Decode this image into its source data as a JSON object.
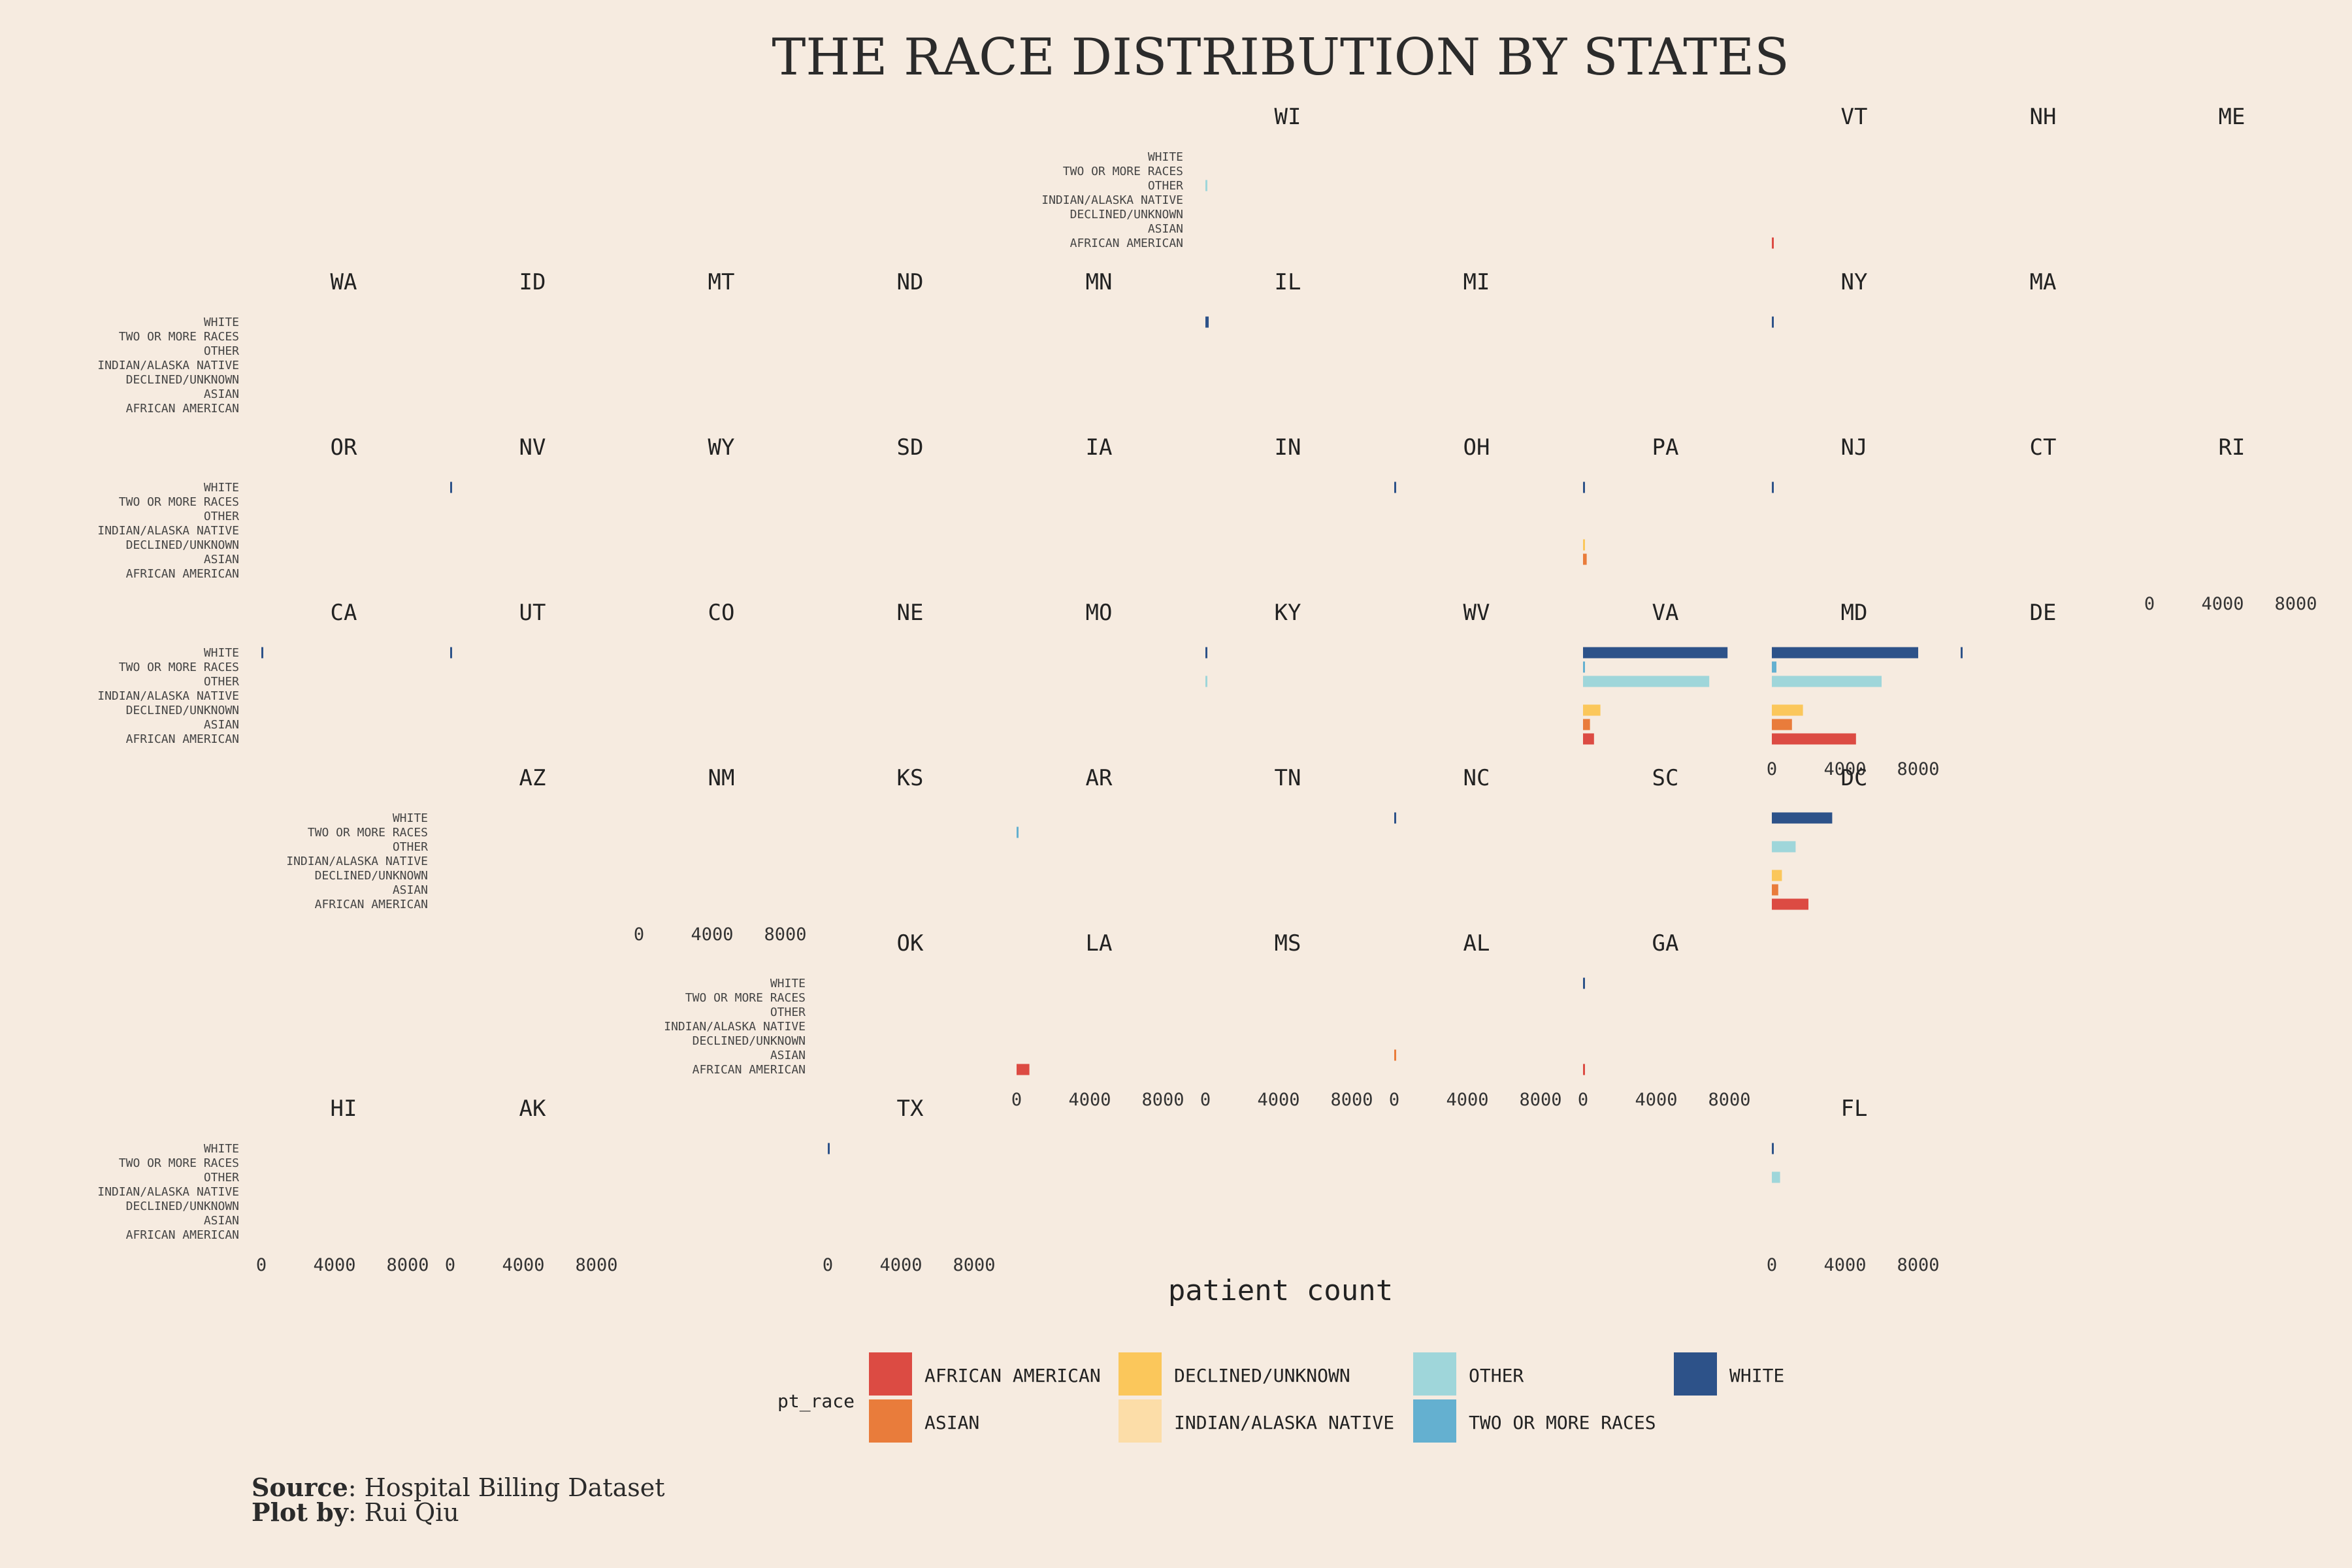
{
  "chart_data": {
    "type": "bar",
    "title": "THE RACE DISTRIBUTION BY STATES",
    "xlabel": "patient count",
    "xlim": [
      0,
      9000
    ],
    "xticks": [
      0,
      4000,
      8000
    ],
    "categories": [
      "WHITE",
      "TWO OR MORE RACES",
      "OTHER",
      "INDIAN/ALASKA NATIVE",
      "DECLINED/UNKNOWN",
      "ASIAN",
      "AFRICAN AMERICAN"
    ],
    "legend_title": "pt_race",
    "legend_position": "bottom",
    "series_colors": {
      "AFRICAN AMERICAN": "#dc4b43",
      "ASIAN": "#e97c3b",
      "DECLINED/UNKNOWN": "#fbc75b",
      "INDIAN/ALASKA NATIVE": "#fcdda8",
      "OTHER": "#9fd6da",
      "TWO OR MORE RACES": "#64b0d0",
      "WHITE": "#2d5289"
    },
    "legend_order": [
      "AFRICAN AMERICAN",
      "ASIAN",
      "DECLINED/UNKNOWN",
      "INDIAN/ALASKA NATIVE",
      "OTHER",
      "TWO OR MORE RACES",
      "WHITE"
    ],
    "panels": [
      {
        "state": "WI",
        "row": 0,
        "col": 6,
        "ylabels": true,
        "xaxis": false,
        "values": {
          "OTHER": 50
        }
      },
      {
        "state": "VT",
        "row": 0,
        "col": 9,
        "ylabels": false,
        "xaxis": false,
        "values": {
          "AFRICAN AMERICAN": 30
        }
      },
      {
        "state": "NH",
        "row": 0,
        "col": 10,
        "ylabels": false,
        "xaxis": false,
        "values": {}
      },
      {
        "state": "ME",
        "row": 0,
        "col": 11,
        "ylabels": false,
        "xaxis": false,
        "values": {}
      },
      {
        "state": "WA",
        "row": 1,
        "col": 1,
        "ylabels": true,
        "xaxis": false,
        "values": {}
      },
      {
        "state": "ID",
        "row": 1,
        "col": 2,
        "ylabels": false,
        "xaxis": false,
        "values": {}
      },
      {
        "state": "MT",
        "row": 1,
        "col": 3,
        "ylabels": false,
        "xaxis": false,
        "values": {}
      },
      {
        "state": "ND",
        "row": 1,
        "col": 4,
        "ylabels": false,
        "xaxis": false,
        "values": {}
      },
      {
        "state": "MN",
        "row": 1,
        "col": 5,
        "ylabels": false,
        "xaxis": false,
        "values": {}
      },
      {
        "state": "IL",
        "row": 1,
        "col": 6,
        "ylabels": false,
        "xaxis": false,
        "values": {
          "WHITE": 180
        }
      },
      {
        "state": "MI",
        "row": 1,
        "col": 7,
        "ylabels": false,
        "xaxis": false,
        "values": {}
      },
      {
        "state": "NY",
        "row": 1,
        "col": 9,
        "ylabels": false,
        "xaxis": false,
        "values": {
          "WHITE": 20
        }
      },
      {
        "state": "MA",
        "row": 1,
        "col": 10,
        "ylabels": false,
        "xaxis": false,
        "values": {}
      },
      {
        "state": "OR",
        "row": 2,
        "col": 1,
        "ylabels": true,
        "xaxis": false,
        "values": {}
      },
      {
        "state": "NV",
        "row": 2,
        "col": 2,
        "ylabels": false,
        "xaxis": false,
        "values": {
          "WHITE": 20
        }
      },
      {
        "state": "WY",
        "row": 2,
        "col": 3,
        "ylabels": false,
        "xaxis": false,
        "values": {}
      },
      {
        "state": "SD",
        "row": 2,
        "col": 4,
        "ylabels": false,
        "xaxis": false,
        "values": {}
      },
      {
        "state": "IA",
        "row": 2,
        "col": 5,
        "ylabels": false,
        "xaxis": false,
        "values": {}
      },
      {
        "state": "IN",
        "row": 2,
        "col": 6,
        "ylabels": false,
        "xaxis": false,
        "values": {}
      },
      {
        "state": "OH",
        "row": 2,
        "col": 7,
        "ylabels": false,
        "xaxis": false,
        "values": {
          "WHITE": 20
        }
      },
      {
        "state": "PA",
        "row": 2,
        "col": 8,
        "ylabels": false,
        "xaxis": false,
        "values": {
          "DECLINED/UNKNOWN": 10,
          "ASIAN": 200,
          "WHITE": 10
        }
      },
      {
        "state": "NJ",
        "row": 2,
        "col": 9,
        "ylabels": false,
        "xaxis": false,
        "values": {
          "WHITE": 10
        }
      },
      {
        "state": "CT",
        "row": 2,
        "col": 10,
        "ylabels": false,
        "xaxis": false,
        "values": {}
      },
      {
        "state": "RI",
        "row": 2,
        "col": 11,
        "ylabels": false,
        "xaxis": true,
        "values": {}
      },
      {
        "state": "CA",
        "row": 3,
        "col": 1,
        "ylabels": true,
        "xaxis": false,
        "values": {
          "WHITE": 20
        }
      },
      {
        "state": "UT",
        "row": 3,
        "col": 2,
        "ylabels": false,
        "xaxis": false,
        "values": {
          "WHITE": 20
        }
      },
      {
        "state": "CO",
        "row": 3,
        "col": 3,
        "ylabels": false,
        "xaxis": false,
        "values": {}
      },
      {
        "state": "NE",
        "row": 3,
        "col": 4,
        "ylabels": false,
        "xaxis": false,
        "values": {}
      },
      {
        "state": "MO",
        "row": 3,
        "col": 5,
        "ylabels": false,
        "xaxis": false,
        "values": {}
      },
      {
        "state": "KY",
        "row": 3,
        "col": 6,
        "ylabels": false,
        "xaxis": false,
        "values": {
          "WHITE": 20,
          "OTHER": 10
        }
      },
      {
        "state": "WV",
        "row": 3,
        "col": 7,
        "ylabels": false,
        "xaxis": false,
        "values": {}
      },
      {
        "state": "VA",
        "row": 3,
        "col": 8,
        "ylabels": false,
        "xaxis": false,
        "values": {
          "WHITE": 7900,
          "TWO OR MORE RACES": 60,
          "OTHER": 6900,
          "DECLINED/UNKNOWN": 950,
          "ASIAN": 380,
          "AFRICAN AMERICAN": 600
        }
      },
      {
        "state": "MD",
        "row": 3,
        "col": 9,
        "ylabels": false,
        "xaxis": true,
        "values": {
          "WHITE": 8000,
          "TWO OR MORE RACES": 250,
          "OTHER": 6000,
          "DECLINED/UNKNOWN": 1700,
          "ASIAN": 1100,
          "AFRICAN AMERICAN": 4600
        }
      },
      {
        "state": "DE",
        "row": 3,
        "col": 10,
        "ylabels": false,
        "xaxis": false,
        "values": {
          "WHITE": 20
        }
      },
      {
        "state": "AZ",
        "row": 4,
        "col": 2,
        "ylabels": true,
        "xaxis": false,
        "values": {}
      },
      {
        "state": "NM",
        "row": 4,
        "col": 3,
        "ylabels": false,
        "xaxis": true,
        "values": {}
      },
      {
        "state": "KS",
        "row": 4,
        "col": 4,
        "ylabels": false,
        "xaxis": false,
        "values": {}
      },
      {
        "state": "AR",
        "row": 4,
        "col": 5,
        "ylabels": false,
        "xaxis": false,
        "values": {
          "TWO OR MORE RACES": 10
        }
      },
      {
        "state": "TN",
        "row": 4,
        "col": 6,
        "ylabels": false,
        "xaxis": false,
        "values": {}
      },
      {
        "state": "NC",
        "row": 4,
        "col": 7,
        "ylabels": false,
        "xaxis": false,
        "values": {
          "WHITE": 10
        }
      },
      {
        "state": "SC",
        "row": 4,
        "col": 8,
        "ylabels": false,
        "xaxis": false,
        "values": {}
      },
      {
        "state": "DC",
        "row": 4,
        "col": 9,
        "ylabels": false,
        "xaxis": false,
        "values": {
          "WHITE": 3300,
          "OTHER": 1300,
          "DECLINED/UNKNOWN": 550,
          "ASIAN": 350,
          "AFRICAN AMERICAN": 2000
        }
      },
      {
        "state": "OK",
        "row": 5,
        "col": 4,
        "ylabels": true,
        "xaxis": false,
        "values": {}
      },
      {
        "state": "LA",
        "row": 5,
        "col": 5,
        "ylabels": false,
        "xaxis": true,
        "values": {
          "AFRICAN AMERICAN": 700
        }
      },
      {
        "state": "MS",
        "row": 5,
        "col": 6,
        "ylabels": false,
        "xaxis": true,
        "values": {}
      },
      {
        "state": "AL",
        "row": 5,
        "col": 7,
        "ylabels": false,
        "xaxis": true,
        "values": {
          "ASIAN": 10
        }
      },
      {
        "state": "GA",
        "row": 5,
        "col": 8,
        "ylabels": false,
        "xaxis": true,
        "values": {
          "WHITE": 20,
          "AFRICAN AMERICAN": 20
        }
      },
      {
        "state": "HI",
        "row": 6,
        "col": 1,
        "ylabels": true,
        "xaxis": true,
        "values": {}
      },
      {
        "state": "AK",
        "row": 6,
        "col": 2,
        "ylabels": false,
        "xaxis": true,
        "values": {}
      },
      {
        "state": "TX",
        "row": 6,
        "col": 4,
        "ylabels": false,
        "xaxis": true,
        "values": {
          "WHITE": 20
        }
      },
      {
        "state": "FL",
        "row": 6,
        "col": 9,
        "ylabels": false,
        "xaxis": true,
        "values": {
          "WHITE": 10,
          "OTHER": 450
        }
      }
    ]
  },
  "caption": {
    "source_label": "Source",
    "source_text": ": Hospital Billing Dataset",
    "plotby_label": "Plot by",
    "plotby_text": ": Rui Qiu"
  }
}
